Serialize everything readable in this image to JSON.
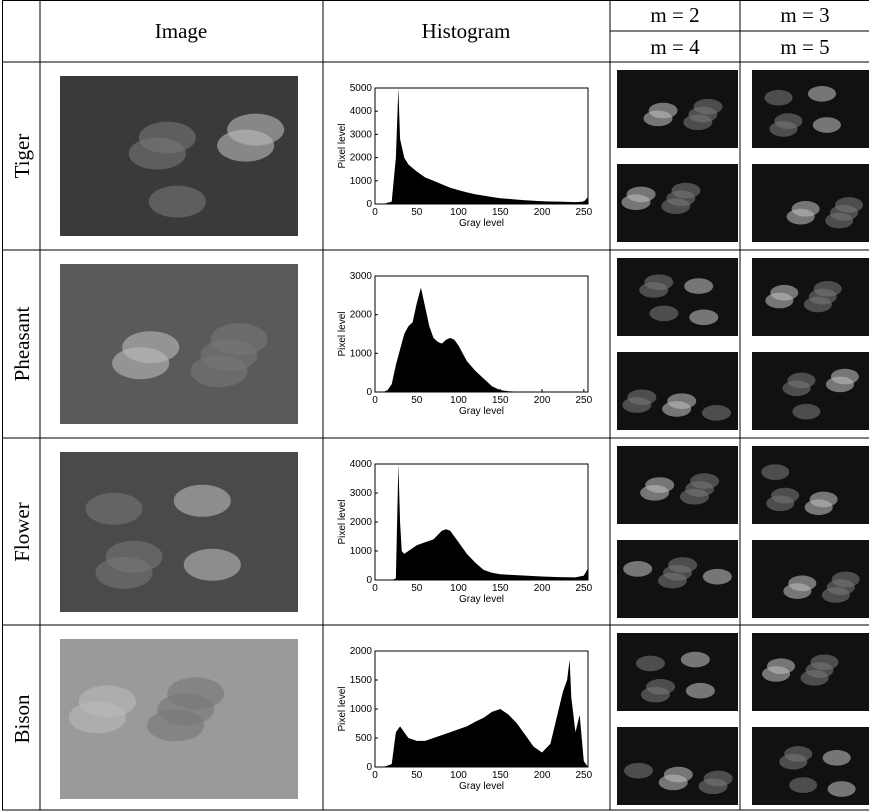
{
  "header": {
    "columns": [
      "Image",
      "Histogram"
    ],
    "m_labels": [
      "m = 2",
      "m = 3",
      "m = 4",
      "m = 5"
    ]
  },
  "rows": [
    {
      "label": "Tiger",
      "histogram": {
        "type": "area",
        "xlabel": "Gray level",
        "ylabel": "Pixel level",
        "xlim": [
          0,
          255
        ],
        "ylim": [
          0,
          5000
        ],
        "xticks": [
          0,
          50,
          100,
          150,
          200,
          250
        ],
        "yticks": [
          0,
          1000,
          2000,
          3000,
          4000,
          5000
        ],
        "x": [
          0,
          10,
          20,
          25,
          28,
          30,
          35,
          40,
          50,
          60,
          70,
          80,
          90,
          100,
          110,
          120,
          130,
          140,
          150,
          160,
          170,
          180,
          190,
          200,
          210,
          220,
          230,
          240,
          250,
          255
        ],
        "values": [
          0,
          0,
          100,
          2000,
          5000,
          2800,
          2000,
          1700,
          1400,
          1150,
          1000,
          850,
          700,
          600,
          500,
          420,
          360,
          300,
          250,
          220,
          190,
          160,
          140,
          120,
          110,
          100,
          90,
          80,
          100,
          300
        ]
      }
    },
    {
      "label": "Pheasant",
      "histogram": {
        "type": "area",
        "xlabel": "Gray level",
        "ylabel": "Pixel level",
        "xlim": [
          0,
          255
        ],
        "ylim": [
          0,
          3000
        ],
        "xticks": [
          0,
          50,
          100,
          150,
          200,
          250
        ],
        "yticks": [
          0,
          1000,
          2000,
          3000
        ],
        "x": [
          0,
          10,
          15,
          20,
          25,
          30,
          35,
          40,
          45,
          50,
          55,
          60,
          65,
          70,
          75,
          80,
          85,
          90,
          95,
          100,
          105,
          110,
          120,
          130,
          140,
          150,
          160,
          170,
          180,
          200,
          220,
          250,
          255
        ],
        "values": [
          0,
          0,
          50,
          200,
          700,
          1100,
          1500,
          1700,
          1800,
          2300,
          2700,
          2200,
          1700,
          1400,
          1300,
          1250,
          1350,
          1400,
          1350,
          1200,
          1000,
          800,
          550,
          350,
          150,
          50,
          20,
          10,
          0,
          0,
          0,
          0,
          0
        ]
      }
    },
    {
      "label": "Flower",
      "histogram": {
        "type": "area",
        "xlabel": "Gray level",
        "ylabel": "Pixel level",
        "xlim": [
          0,
          255
        ],
        "ylim": [
          0,
          4000
        ],
        "xticks": [
          0,
          50,
          100,
          150,
          200,
          250
        ],
        "yticks": [
          0,
          1000,
          2000,
          3000,
          4000
        ],
        "x": [
          0,
          20,
          25,
          28,
          30,
          32,
          35,
          40,
          50,
          60,
          70,
          80,
          85,
          90,
          100,
          110,
          120,
          130,
          140,
          150,
          160,
          180,
          200,
          220,
          240,
          250,
          255
        ],
        "values": [
          0,
          0,
          50,
          4000,
          2000,
          1000,
          900,
          1000,
          1200,
          1300,
          1400,
          1700,
          1750,
          1700,
          1300,
          900,
          600,
          350,
          250,
          200,
          180,
          150,
          120,
          100,
          90,
          150,
          400
        ]
      }
    },
    {
      "label": "Bison",
      "histogram": {
        "type": "area",
        "xlabel": "Gray level",
        "ylabel": "Pixel level",
        "xlim": [
          0,
          255
        ],
        "ylim": [
          0,
          2000
        ],
        "xticks": [
          0,
          50,
          100,
          150,
          200,
          250
        ],
        "yticks": [
          0,
          500,
          1000,
          1500,
          2000
        ],
        "x": [
          0,
          10,
          20,
          25,
          30,
          40,
          50,
          60,
          70,
          80,
          90,
          100,
          110,
          120,
          130,
          140,
          150,
          160,
          170,
          180,
          190,
          200,
          210,
          215,
          220,
          225,
          230,
          233,
          235,
          240,
          245,
          250,
          255
        ],
        "values": [
          0,
          0,
          50,
          600,
          700,
          500,
          450,
          450,
          500,
          550,
          600,
          650,
          700,
          780,
          850,
          950,
          1000,
          900,
          750,
          550,
          350,
          250,
          400,
          700,
          1000,
          1300,
          1500,
          1850,
          1200,
          600,
          900,
          100,
          0
        ]
      }
    }
  ]
}
